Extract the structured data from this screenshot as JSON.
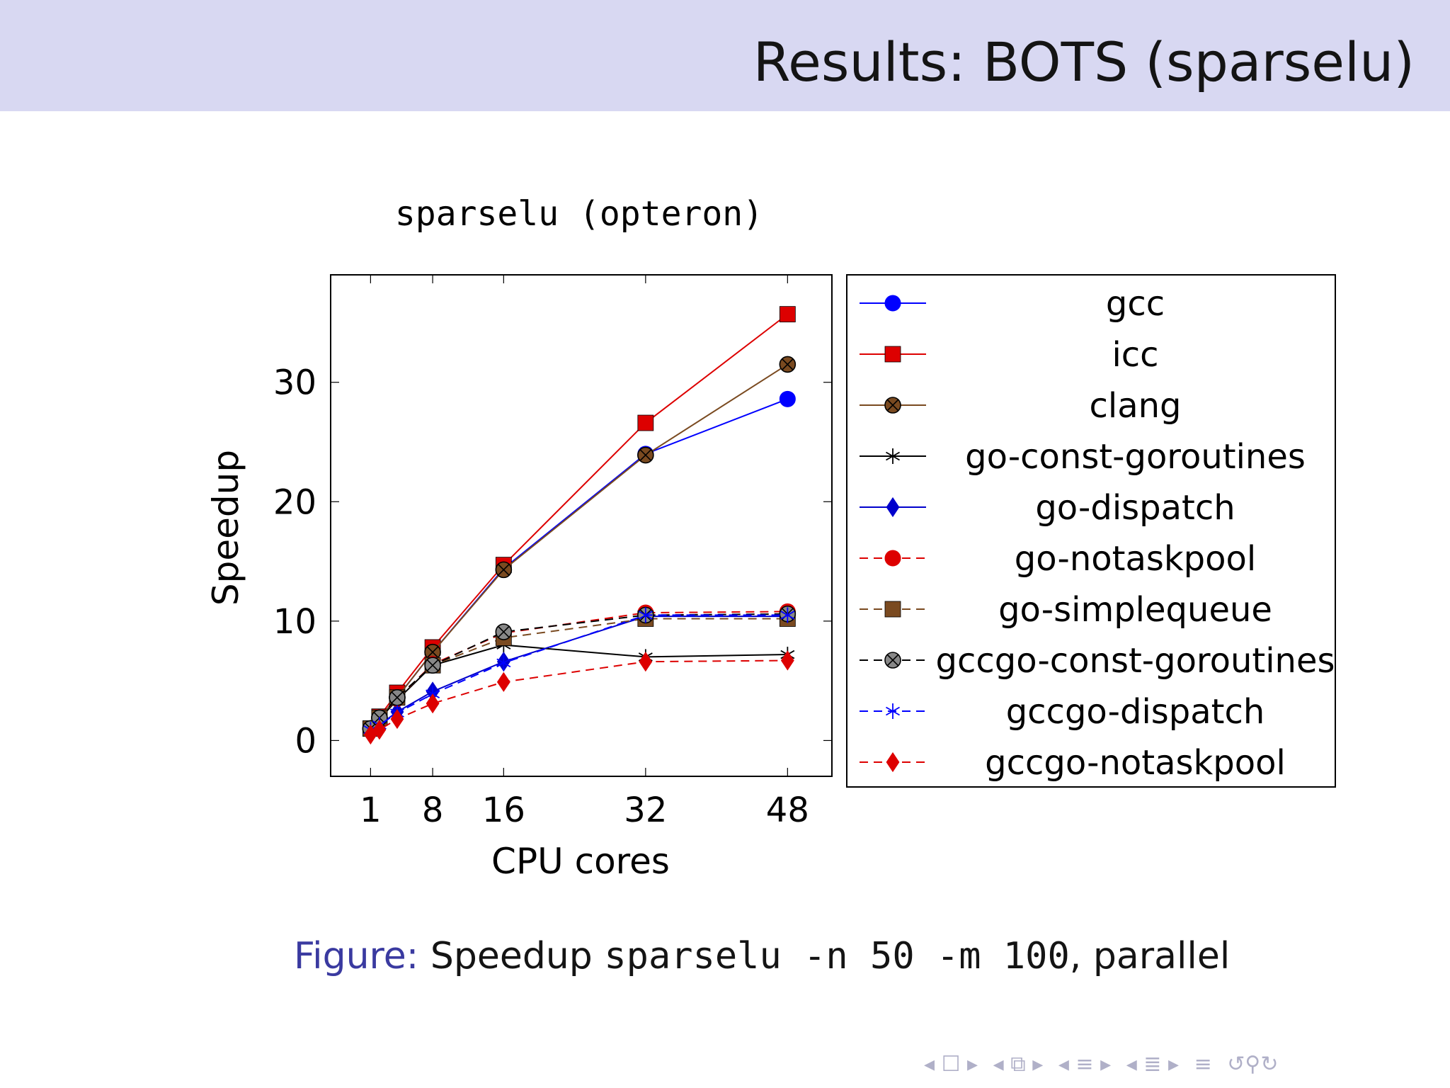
{
  "slide": {
    "title": "Results:  BOTS (sparselu)"
  },
  "caption": {
    "label": "Figure:",
    "text_before": "Speedup",
    "code1": "sparselu -n 50 -m 100",
    "text_after": ", parallel"
  },
  "nav_icons": [
    "arrow-left-icon",
    "frame-icon",
    "arrow-right-icon",
    "arrow-left-icon",
    "section-icon",
    "arrow-right-icon",
    "arrow-left-icon",
    "subsection-icon",
    "arrow-right-icon",
    "arrow-left-icon",
    "subsubsection-icon",
    "arrow-right-icon",
    "align-icon",
    "search-icon"
  ],
  "chart_data": {
    "type": "line",
    "title": "sparselu (opteron)",
    "xlabel": "CPU cores",
    "ylabel": "Speedup",
    "xticks": [
      1,
      8,
      16,
      32,
      48
    ],
    "yticks": [
      0,
      10,
      20,
      30
    ],
    "xlim": [
      -3.5,
      53
    ],
    "ylim": [
      -3,
      39
    ],
    "grid": false,
    "legend_position": "right",
    "x": [
      1,
      2,
      4,
      8,
      16,
      32,
      48
    ],
    "series": [
      {
        "name": "gcc",
        "color": "#0000ff",
        "marker": "circle",
        "dashed": false,
        "values": [
          1.0,
          1.9,
          3.6,
          7.4,
          14.4,
          24.0,
          28.6
        ]
      },
      {
        "name": "icc",
        "color": "#dd0000",
        "marker": "square",
        "dashed": false,
        "values": [
          1.0,
          2.0,
          4.0,
          7.8,
          14.7,
          26.6,
          35.7
        ]
      },
      {
        "name": "clang",
        "color": "#7a4a20",
        "marker": "otimes",
        "dashed": false,
        "values": [
          1.0,
          1.9,
          3.6,
          7.4,
          14.3,
          23.9,
          31.5
        ]
      },
      {
        "name": "go-const-goroutines",
        "color": "#000000",
        "marker": "star",
        "dashed": false,
        "values": [
          1.0,
          1.8,
          3.4,
          6.3,
          8.0,
          7.0,
          7.2
        ]
      },
      {
        "name": "go-dispatch",
        "color": "#0000cc",
        "marker": "diamond",
        "dashed": false,
        "values": [
          0.9,
          1.3,
          2.4,
          4.1,
          6.6,
          10.4,
          10.4
        ]
      },
      {
        "name": "go-notaskpool",
        "color": "#dd0000",
        "marker": "circle",
        "dashed": true,
        "values": [
          1.0,
          1.9,
          3.5,
          6.4,
          9.0,
          10.7,
          10.8
        ]
      },
      {
        "name": "go-simplequeue",
        "color": "#7a4a20",
        "marker": "square",
        "dashed": true,
        "values": [
          1.0,
          1.9,
          3.6,
          6.3,
          8.6,
          10.2,
          10.2
        ]
      },
      {
        "name": "gccgo-const-goroutines",
        "color": "#000000",
        "marker": "otimes",
        "dashed": true,
        "values": [
          1.0,
          1.9,
          3.6,
          6.3,
          9.1,
          10.5,
          10.6
        ]
      },
      {
        "name": "gccgo-dispatch",
        "color": "#0000ff",
        "marker": "star",
        "dashed": true,
        "values": [
          0.9,
          1.3,
          2.3,
          3.9,
          6.5,
          10.5,
          10.5
        ]
      },
      {
        "name": "gccgo-notaskpool",
        "color": "#dd0000",
        "marker": "diamond",
        "dashed": true,
        "values": [
          0.5,
          0.9,
          1.8,
          3.1,
          4.9,
          6.6,
          6.7
        ]
      }
    ]
  }
}
